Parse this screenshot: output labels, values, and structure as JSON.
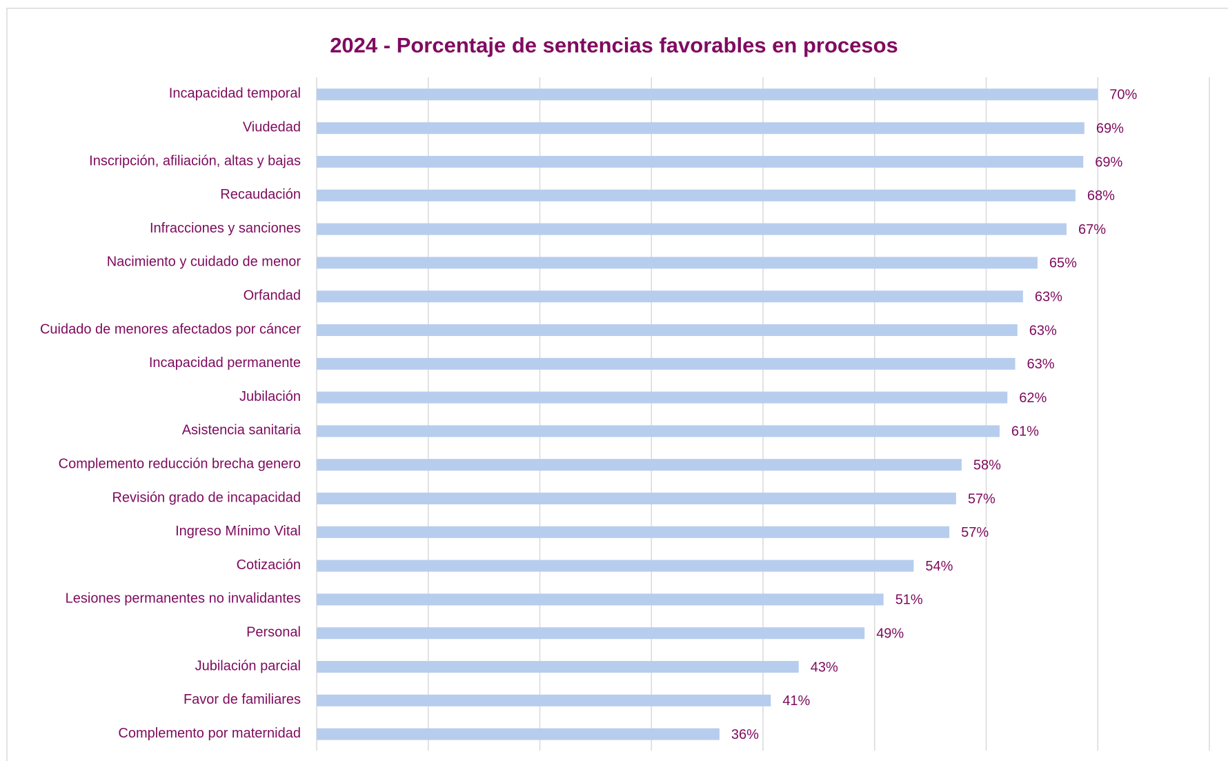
{
  "chart_data": {
    "type": "bar",
    "orientation": "horizontal",
    "title": "2024 - Porcentaje de sentencias favorables en procesos",
    "categories": [
      "Incapacidad temporal",
      "Viudedad",
      "Inscripción, afiliación, altas y bajas",
      "Recaudación",
      "Infracciones y sanciones",
      "Nacimiento y cuidado de menor",
      "Orfandad",
      "Cuidado de menores afectados por cáncer",
      "Incapacidad permanente",
      "Jubilación",
      "Asistencia sanitaria",
      "Complemento reducción brecha genero",
      "Revisión grado de incapacidad",
      "Ingreso Mínimo Vital",
      "Cotización",
      "Lesiones permanentes no invalidantes",
      "Personal",
      "Jubilación parcial",
      "Favor de familiares",
      "Complemento por maternidad"
    ],
    "values": [
      70,
      68.8,
      68.7,
      68,
      67.2,
      64.6,
      63.3,
      62.8,
      62.6,
      61.9,
      61.2,
      57.8,
      57.3,
      56.7,
      53.5,
      50.8,
      49.1,
      43.2,
      40.7,
      36.1
    ],
    "value_labels": [
      "70%",
      "69%",
      "69%",
      "68%",
      "67%",
      "65%",
      "63%",
      "63%",
      "63%",
      "62%",
      "61%",
      "58%",
      "57%",
      "57%",
      "54%",
      "51%",
      "49%",
      "43%",
      "41%",
      "36%"
    ],
    "color": "#b7cdee",
    "xlim": [
      0,
      80
    ],
    "xticks": [
      0,
      10,
      20,
      30,
      40,
      50,
      60,
      70,
      80
    ],
    "grid": true
  }
}
